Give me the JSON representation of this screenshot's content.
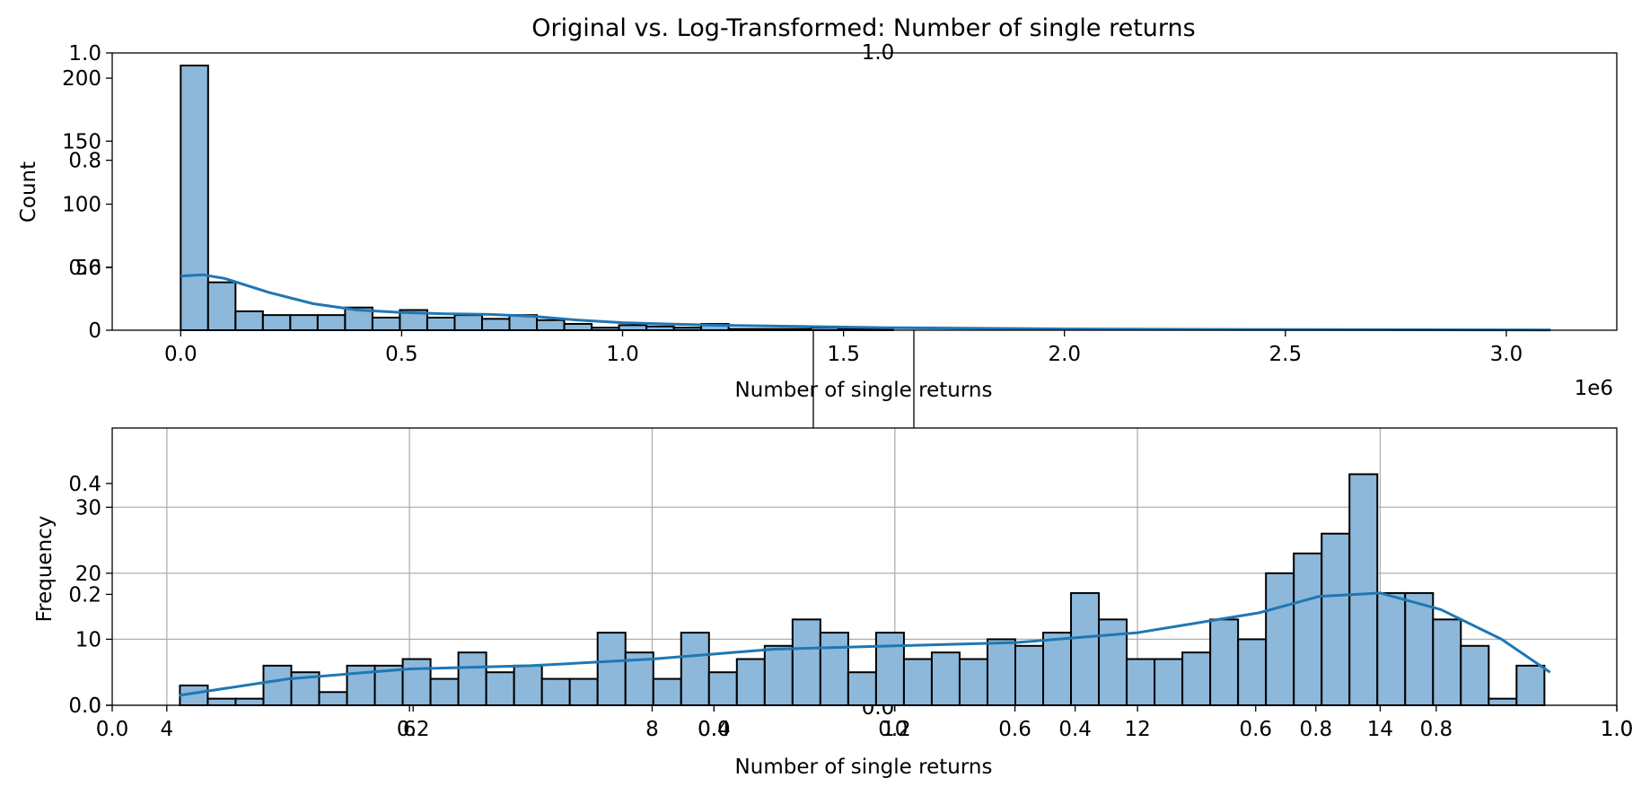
{
  "figure_title": "Original vs. Log-Transformed: Number of single returns",
  "chart_data": [
    {
      "type": "bar",
      "panel": "original",
      "xlabel": "Number of single returns",
      "ylabel": "Count",
      "x_offset_label": "1e6",
      "xlim": [
        -0.155,
        3.25
      ],
      "ylim": [
        0,
        220
      ],
      "xticks": [
        "0.0",
        "0.5",
        "1.0",
        "1.5",
        "2.0",
        "2.5",
        "3.0"
      ],
      "yticks": [
        "0",
        "50",
        "100",
        "150",
        "200"
      ],
      "overlay_yticks": [
        "0.6",
        "0.8",
        "1.0"
      ],
      "overlay_top_label": "1.0",
      "bin_width": 0.062,
      "bin_start": 0.0,
      "counts": [
        210,
        38,
        15,
        12,
        12,
        12,
        18,
        10,
        16,
        10,
        12,
        9,
        12,
        8,
        5,
        2,
        4,
        3,
        2,
        5,
        1,
        1,
        1,
        2,
        1,
        1,
        0,
        0,
        0,
        0,
        0,
        0,
        0,
        0,
        0,
        0,
        0,
        0,
        0,
        0,
        0,
        0,
        0,
        0,
        0,
        0,
        0,
        0,
        0,
        0
      ],
      "kde": {
        "x": [
          0.0,
          0.05,
          0.1,
          0.2,
          0.3,
          0.4,
          0.5,
          0.6,
          0.7,
          0.8,
          0.9,
          1.0,
          1.2,
          1.4,
          1.6,
          1.8,
          2.0,
          2.5,
          3.1
        ],
        "y": [
          43,
          44,
          41,
          30,
          21,
          16,
          14,
          13,
          12.5,
          11,
          8,
          6,
          4,
          3,
          2,
          1.5,
          1,
          0.5,
          0.2
        ]
      },
      "grid": false,
      "color": "#1f77b4",
      "bar_fill": "#8db8da"
    },
    {
      "type": "bar",
      "panel": "log_transformed",
      "xlabel": "Number of single returns",
      "ylabel": "Frequency",
      "xlim": [
        3.55,
        15.95
      ],
      "ylim": [
        0,
        42
      ],
      "xticks": [
        "4",
        "6",
        "8",
        "10",
        "12",
        "14"
      ],
      "yticks": [
        "0",
        "10",
        "20",
        "30"
      ],
      "overlay_xticks": [
        "0.0",
        "0.2",
        "0.4",
        "0.6",
        "0.8",
        "1.0",
        "0.0",
        "0.2",
        "0.4",
        "0.6",
        "0.8",
        "1.0"
      ],
      "overlay_yticks": [
        "0.0",
        "0.2",
        "0.4"
      ],
      "overlay_bottom_label": "0.0",
      "bin_width": 0.2295,
      "bin_start": 4.108,
      "counts": [
        3,
        1,
        1,
        6,
        5,
        2,
        6,
        6,
        7,
        4,
        8,
        5,
        6,
        4,
        4,
        11,
        8,
        4,
        11,
        5,
        7,
        9,
        13,
        11,
        5,
        11,
        7,
        8,
        7,
        10,
        9,
        11,
        17,
        13,
        7,
        7,
        8,
        13,
        10,
        20,
        23,
        26,
        35,
        17,
        17,
        13,
        9,
        1,
        6
      ],
      "kde": {
        "x": [
          4.1,
          5.0,
          6.0,
          7.0,
          8.0,
          9.0,
          10.0,
          11.0,
          12.0,
          13.0,
          13.5,
          14.0,
          14.5,
          15.0,
          15.4
        ],
        "y": [
          1.5,
          4.0,
          5.5,
          6.0,
          7.0,
          8.5,
          9.0,
          9.5,
          11,
          14,
          16.5,
          17,
          14.5,
          10,
          5
        ]
      },
      "grid": true,
      "color": "#1f77b4",
      "bar_fill": "#8db8da"
    }
  ]
}
